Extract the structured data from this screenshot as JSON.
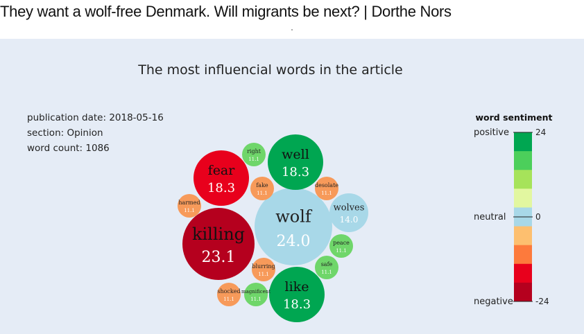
{
  "page": {
    "headline": "They want a wolf-free Denmark. Will migrants be next? | Dorthe Nors"
  },
  "meta": {
    "publication_date": "publication date: 2018-05-16",
    "section": "section: Opinion",
    "word_count": "word count: 1086"
  },
  "legend": {
    "title": "word sentiment",
    "positive_label": "positive",
    "neutral_label": "neutral",
    "negative_label": "negative",
    "max_tick": "24",
    "zero_tick": "0",
    "min_tick": "-24",
    "scale_colors": [
      "#00a651",
      "#4ccf5b",
      "#a6e35a",
      "#e2f7a0",
      "#a8d8e8",
      "#fdbf6f",
      "#fd7a3c",
      "#e8001c",
      "#b5001e"
    ]
  },
  "chart_data": {
    "type": "bubble",
    "title": "The most influencial words in the article",
    "value_range": [
      -24,
      24
    ],
    "words": [
      {
        "word": "wolf",
        "value": "24.0",
        "sentiment": "neutral",
        "color": "#a8d8e8"
      },
      {
        "word": "killing",
        "value": "23.1",
        "sentiment": "negative",
        "color": "#b5001e"
      },
      {
        "word": "fear",
        "value": "18.3",
        "sentiment": "negative",
        "color": "#e8001c"
      },
      {
        "word": "well",
        "value": "18.3",
        "sentiment": "positive",
        "color": "#00a651"
      },
      {
        "word": "like",
        "value": "18.3",
        "sentiment": "positive",
        "color": "#00a651"
      },
      {
        "word": "wolves",
        "value": "14.0",
        "sentiment": "neutral",
        "color": "#a8d8e8"
      },
      {
        "word": "right",
        "value": "11.1",
        "sentiment": "positive",
        "color": "#6fd66a"
      },
      {
        "word": "fake",
        "value": "11.1",
        "sentiment": "negative",
        "color": "#f79a5a"
      },
      {
        "word": "desolate",
        "value": "11.1",
        "sentiment": "negative",
        "color": "#f79a5a"
      },
      {
        "word": "harmed",
        "value": "11.1",
        "sentiment": "negative",
        "color": "#f79a5a"
      },
      {
        "word": "peace",
        "value": "11.1",
        "sentiment": "positive",
        "color": "#6fd66a"
      },
      {
        "word": "safe",
        "value": "11.1",
        "sentiment": "positive",
        "color": "#6fd66a"
      },
      {
        "word": "blurring",
        "value": "11.1",
        "sentiment": "negative",
        "color": "#f79a5a"
      },
      {
        "word": "shocked",
        "value": "11.1",
        "sentiment": "negative",
        "color": "#f79a5a"
      },
      {
        "word": "magnificent",
        "value": "11.1",
        "sentiment": "positive",
        "color": "#6fd66a"
      }
    ]
  }
}
